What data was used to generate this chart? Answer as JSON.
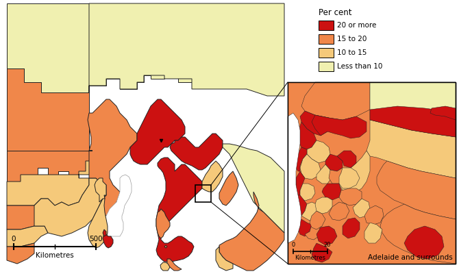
{
  "legend_title": "Per cent",
  "legend_items": [
    {
      "label": "20 or more",
      "color": "#cc1111"
    },
    {
      "label": "15 to 20",
      "color": "#f0874a"
    },
    {
      "label": "10 to 15",
      "color": "#f5c97a"
    },
    {
      "label": "Less than 10",
      "color": "#f0f0b0"
    }
  ],
  "scale_bar_main": {
    "label": "Kilometres",
    "tick0": "0",
    "tick1": "500"
  },
  "scale_bar_inset": {
    "label": "Kilometres",
    "tick0": "0",
    "tick1": "20"
  },
  "inset_label": "Adelaide and surrounds",
  "bg_color": "#ffffff"
}
